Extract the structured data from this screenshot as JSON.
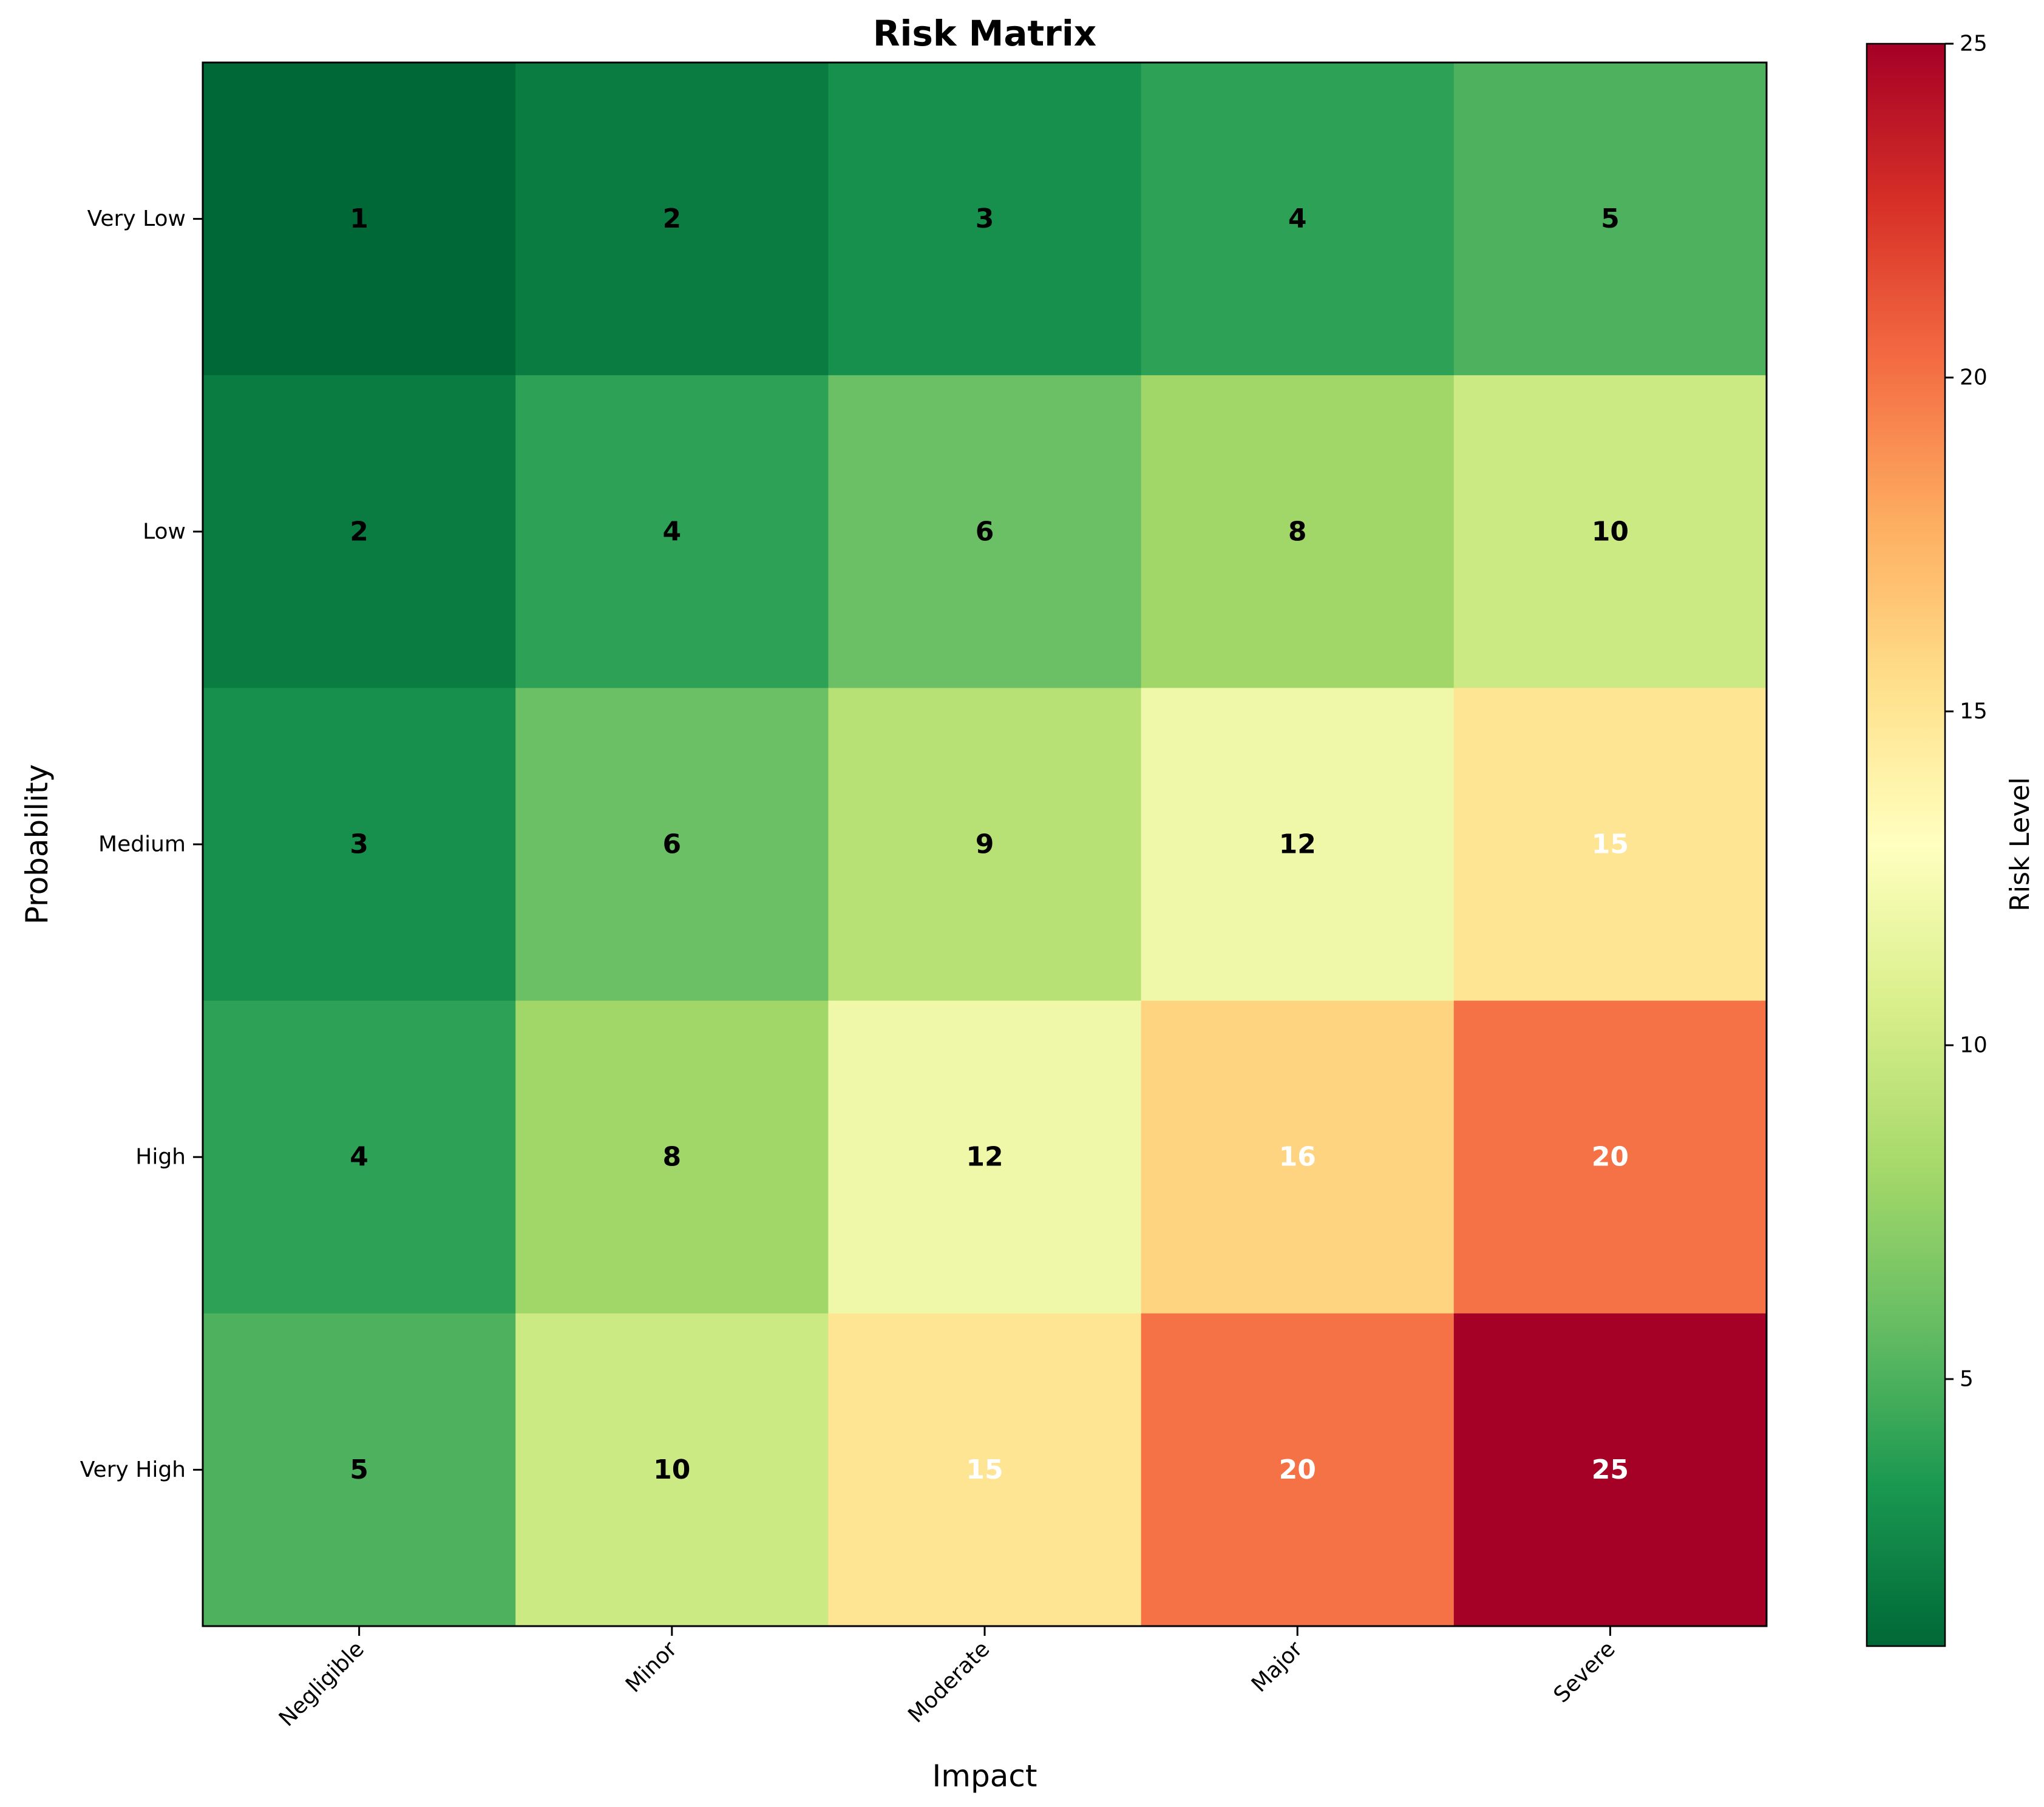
{
  "chart_data": {
    "type": "heatmap",
    "title": "Risk Matrix",
    "xlabel": "Impact",
    "ylabel": "Probability",
    "x_categories": [
      "Negligible",
      "Minor",
      "Moderate",
      "Major",
      "Severe"
    ],
    "y_categories": [
      "Very Low",
      "Low",
      "Medium",
      "High",
      "Very High"
    ],
    "values": [
      [
        1,
        2,
        3,
        4,
        5
      ],
      [
        2,
        4,
        6,
        8,
        10
      ],
      [
        3,
        6,
        9,
        12,
        15
      ],
      [
        4,
        8,
        12,
        16,
        20
      ],
      [
        5,
        10,
        15,
        20,
        25
      ]
    ],
    "colormap": "RdYlGn_r",
    "colorbar": {
      "label": "Risk Level",
      "range": [
        1,
        25
      ],
      "ticks": [
        5,
        10,
        15,
        20,
        25
      ]
    },
    "label_color_rule": "white when value is 15 or more, otherwise black",
    "label_colors": {
      "dark": "#000000",
      "light": "#ffffff"
    },
    "grid": false,
    "legend": "none"
  }
}
